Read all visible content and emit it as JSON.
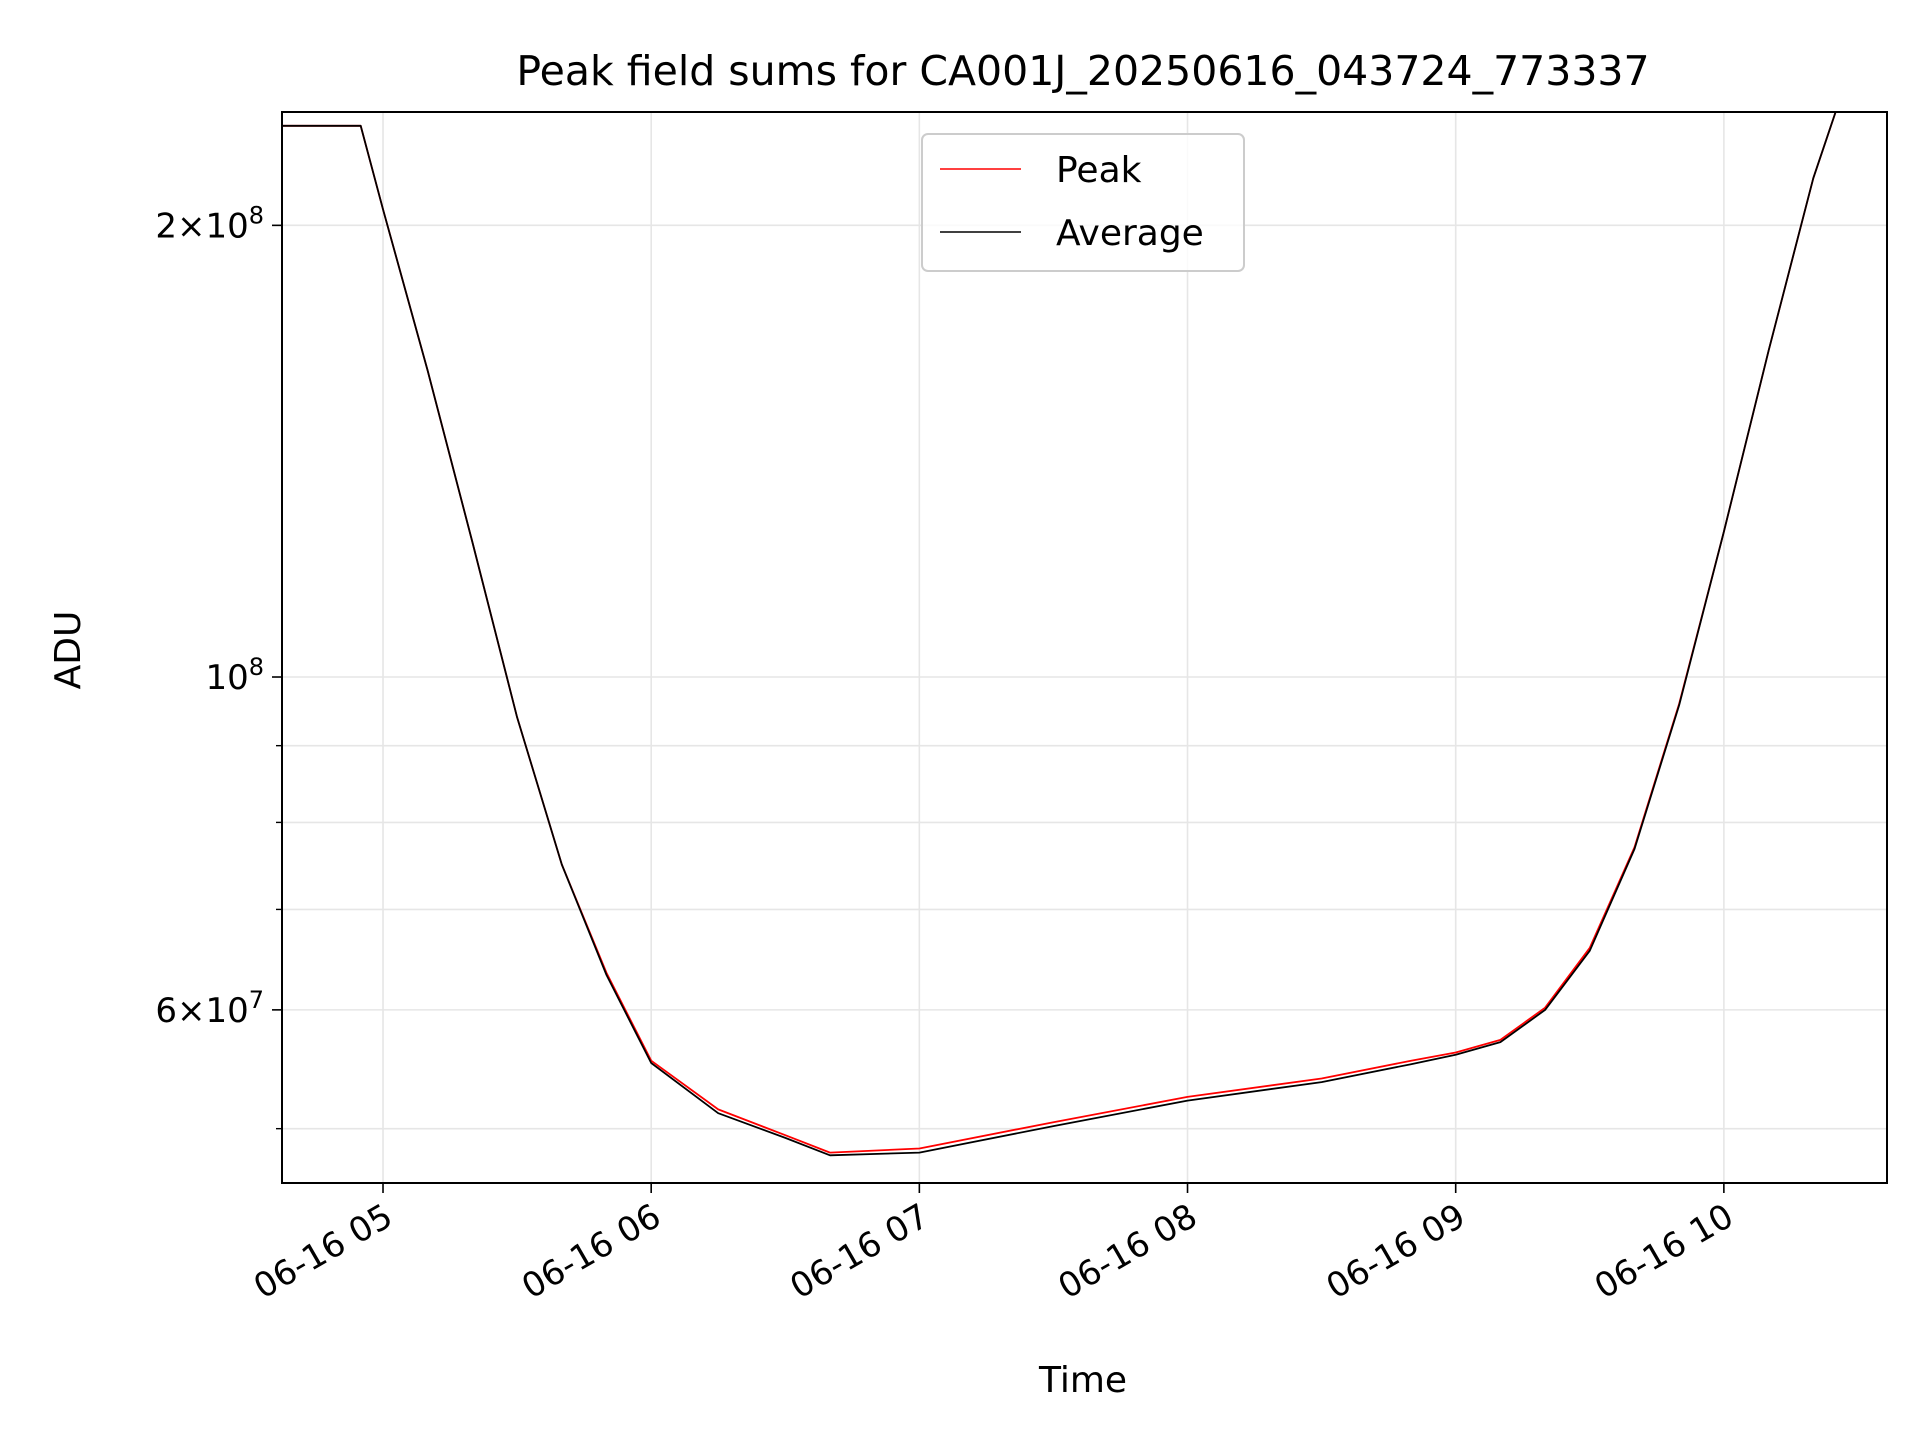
{
  "chart_data": {
    "type": "line",
    "title": "Peak field sums for CA001J_20250616_043724_773337",
    "xlabel": "Time",
    "ylabel": "ADU",
    "x_axis": {
      "kind": "time",
      "range": [
        "2025-06-16 04:37:24",
        "2025-06-16 10:36:30"
      ],
      "ticks": [
        {
          "t": "2025-06-16 05:00",
          "label": "06-16 05"
        },
        {
          "t": "2025-06-16 06:00",
          "label": "06-16 06"
        },
        {
          "t": "2025-06-16 07:00",
          "label": "06-16 07"
        },
        {
          "t": "2025-06-16 08:00",
          "label": "06-16 08"
        },
        {
          "t": "2025-06-16 09:00",
          "label": "06-16 09"
        },
        {
          "t": "2025-06-16 10:00",
          "label": "06-16 10"
        }
      ]
    },
    "y_axis": {
      "scale": "log",
      "range": [
        46000000,
        238000000
      ],
      "major_ticks": [
        {
          "value": 60000000,
          "base": "6",
          "exp": "7"
        },
        {
          "value": 100000000,
          "base": "",
          "exp": "8"
        },
        {
          "value": 200000000,
          "base": "2",
          "exp": "8"
        }
      ],
      "minor_gridlines": [
        50000000,
        70000000,
        80000000,
        90000000
      ]
    },
    "grid": true,
    "legend": {
      "position": "top-center",
      "entries": [
        "Peak",
        "Average"
      ]
    },
    "series": [
      {
        "name": "Peak",
        "color": "#ff0000",
        "x": [
          "2025-06-16 04:37",
          "2025-06-16 04:55",
          "2025-06-16 05:00",
          "2025-06-16 05:10",
          "2025-06-16 05:20",
          "2025-06-16 05:30",
          "2025-06-16 05:40",
          "2025-06-16 05:50",
          "2025-06-16 06:00",
          "2025-06-16 06:15",
          "2025-06-16 06:30",
          "2025-06-16 06:40",
          "2025-06-16 07:00",
          "2025-06-16 07:30",
          "2025-06-16 08:00",
          "2025-06-16 08:30",
          "2025-06-16 08:50",
          "2025-06-16 09:00",
          "2025-06-16 09:10",
          "2025-06-16 09:20",
          "2025-06-16 09:30",
          "2025-06-16 09:40",
          "2025-06-16 09:50",
          "2025-06-16 10:00",
          "2025-06-16 10:10",
          "2025-06-16 10:20",
          "2025-06-16 10:25",
          "2025-06-16 10:36"
        ],
        "values": [
          233000000,
          233000000,
          205000000,
          160000000,
          123000000,
          94000000,
          75000000,
          63500000,
          55500000,
          51500000,
          49500000,
          48200000,
          48500000,
          50500000,
          52500000,
          54000000,
          55500000,
          56200000,
          57300000,
          60200000,
          66000000,
          77000000,
          96000000,
          125000000,
          165000000,
          215000000,
          238000000,
          238000000
        ]
      },
      {
        "name": "Average",
        "color": "#000000",
        "x": [
          "2025-06-16 04:37",
          "2025-06-16 04:55",
          "2025-06-16 05:00",
          "2025-06-16 05:10",
          "2025-06-16 05:20",
          "2025-06-16 05:30",
          "2025-06-16 05:40",
          "2025-06-16 05:50",
          "2025-06-16 06:00",
          "2025-06-16 06:15",
          "2025-06-16 06:30",
          "2025-06-16 06:40",
          "2025-06-16 07:00",
          "2025-06-16 07:30",
          "2025-06-16 08:00",
          "2025-06-16 08:30",
          "2025-06-16 08:50",
          "2025-06-16 09:00",
          "2025-06-16 09:10",
          "2025-06-16 09:20",
          "2025-06-16 09:30",
          "2025-06-16 09:40",
          "2025-06-16 09:50",
          "2025-06-16 10:00",
          "2025-06-16 10:10",
          "2025-06-16 10:20",
          "2025-06-16 10:25",
          "2025-06-16 10:36"
        ],
        "values": [
          233000000,
          233000000,
          205000000,
          160000000,
          123000000,
          94000000,
          75000000,
          63300000,
          55300000,
          51200000,
          49300000,
          48000000,
          48200000,
          50200000,
          52200000,
          53700000,
          55200000,
          56000000,
          57100000,
          60000000,
          65700000,
          76800000,
          95800000,
          125000000,
          165000000,
          215000000,
          238000000,
          238000000
        ]
      }
    ]
  }
}
